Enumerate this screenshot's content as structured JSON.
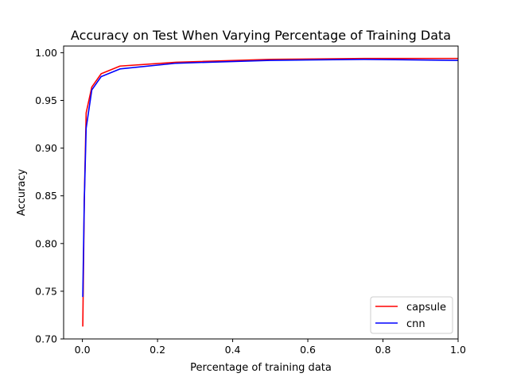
{
  "chart_data": {
    "type": "line",
    "title": "Accuracy on Test When Varying Percentage of Training Data",
    "xlabel": "Percentage of training data",
    "ylabel": "Accuracy",
    "xlim": [
      -0.05,
      1.0
    ],
    "ylim": [
      0.7,
      1.007
    ],
    "x_ticks": [
      0.0,
      0.2,
      0.4,
      0.6,
      0.8,
      1.0
    ],
    "x_tick_labels": [
      "0.0",
      "0.2",
      "0.4",
      "0.6",
      "0.8",
      "1.0"
    ],
    "y_ticks": [
      0.7,
      0.75,
      0.8,
      0.85,
      0.9,
      0.95,
      1.0
    ],
    "y_tick_labels": [
      "0.70",
      "0.75",
      "0.80",
      "0.85",
      "0.90",
      "0.95",
      "1.00"
    ],
    "grid": false,
    "legend_position": "lower-right",
    "series": [
      {
        "name": "capsule",
        "color": "#ff0000",
        "x": [
          0.001,
          0.005,
          0.01,
          0.025,
          0.05,
          0.1,
          0.25,
          0.5,
          0.75,
          1.0
        ],
        "y": [
          0.713,
          0.845,
          0.937,
          0.964,
          0.978,
          0.986,
          0.99,
          0.993,
          0.994,
          0.994
        ]
      },
      {
        "name": "cnn",
        "color": "#0000ff",
        "x": [
          0.001,
          0.005,
          0.01,
          0.025,
          0.05,
          0.1,
          0.25,
          0.5,
          0.75,
          1.0
        ],
        "y": [
          0.744,
          0.845,
          0.921,
          0.961,
          0.975,
          0.983,
          0.989,
          0.992,
          0.993,
          0.992
        ]
      }
    ]
  }
}
